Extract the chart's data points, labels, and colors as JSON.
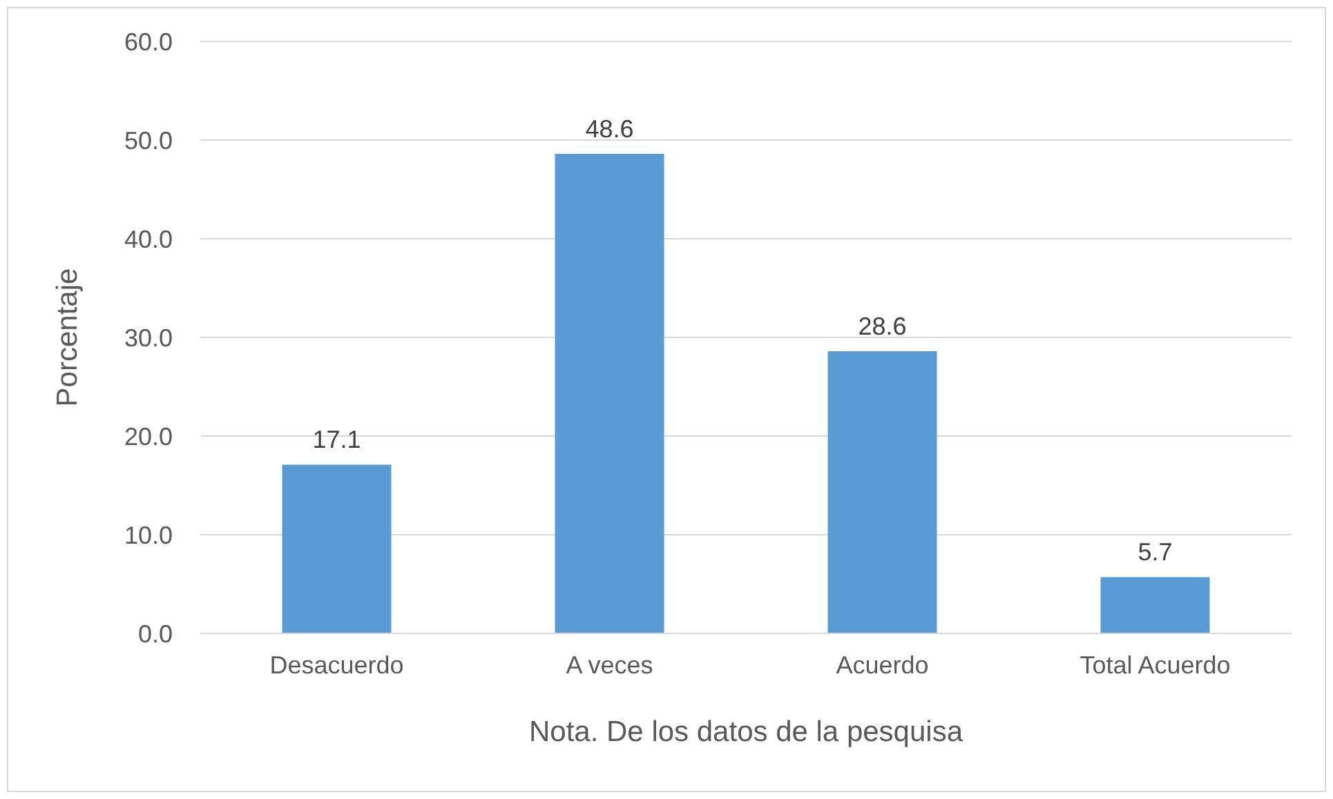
{
  "chart_data": {
    "type": "bar",
    "xlabel": "Nota. De los datos de la pesquisa",
    "ylabel": "Porcentaje",
    "categories": [
      "Desacuerdo",
      "A veces",
      "Acuerdo",
      "Total Acuerdo"
    ],
    "values": [
      17.1,
      48.6,
      28.6,
      5.7
    ],
    "color": "#5b9bd5",
    "ylim": [
      0,
      60
    ],
    "yticks": [
      {
        "value": 0,
        "label": "0.0"
      },
      {
        "value": 10,
        "label": "10.0"
      },
      {
        "value": 20,
        "label": "20.0"
      },
      {
        "value": 30,
        "label": "30.0"
      },
      {
        "value": 40,
        "label": "40.0"
      },
      {
        "value": 50,
        "label": "50.0"
      },
      {
        "value": 60,
        "label": "60.0"
      }
    ],
    "grid": "y",
    "data_labels": true
  }
}
